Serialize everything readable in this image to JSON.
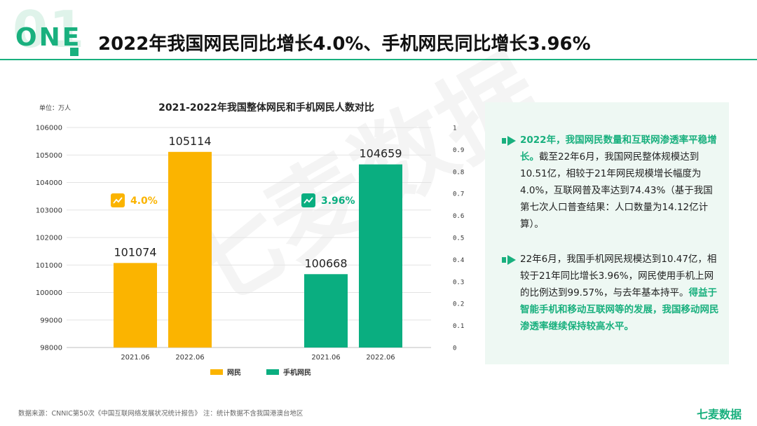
{
  "header": {
    "number": "01",
    "section": "ONE",
    "title": "2022年我国网民同比增长4.0%、手机网民同比增长3.96%"
  },
  "watermark": "七麦数据",
  "chart_data": {
    "type": "bar",
    "title": "2021-2022年我国整体网民和手机网民人数对比",
    "unit_label": "单位：万人",
    "groups": [
      {
        "series": "网民",
        "categories": [
          "2021.06",
          "2022.06"
        ],
        "values": [
          101074,
          105114
        ],
        "growth": "4.0%"
      },
      {
        "series": "手机网民",
        "categories": [
          "2021.06",
          "2022.06"
        ],
        "values": [
          100668,
          104659
        ],
        "growth": "3.96%"
      }
    ],
    "series": [
      {
        "name": "网民",
        "color": "#fbb400"
      },
      {
        "name": "手机网民",
        "color": "#0aae80"
      }
    ],
    "ylim": [
      98000,
      106000
    ],
    "y_ticks": [
      "98000",
      "99000",
      "100000",
      "101000",
      "102000",
      "103000",
      "104000",
      "105000",
      "106000"
    ],
    "y2_ticks": [
      "0",
      "0.1",
      "0.2",
      "0.3",
      "0.4",
      "0.5",
      "0.6",
      "0.7",
      "0.8",
      "0.9",
      "1"
    ],
    "grid": true,
    "legend": "bottom"
  },
  "panel": {
    "p1": {
      "highlight": "2022年，我国网民数量和互联网渗透率平稳增长。",
      "text": "截至22年6月，我国网民整体规模达到10.51亿，相较于21年网民规模增长幅度为4.0%，互联网普及率达到74.43%（基于我国第七次人口普查结果：人口数量为14.12亿计算）。"
    },
    "p2": {
      "text": "22年6月，我国手机网民规模达到10.47亿，相较于21年同比增长3.96%，网民使用手机上网的比例达到99.57%，与去年基本持平。",
      "highlight": "得益于智能手机和移动互联网等的发展，我国移动网民渗透率继续保持较高水平。"
    }
  },
  "footer": {
    "source": "数据来源：CNNIC第50次《中国互联网络发展状况统计报告》 注：统计数据不含我国港澳台地区",
    "brand": "七麦数据"
  }
}
